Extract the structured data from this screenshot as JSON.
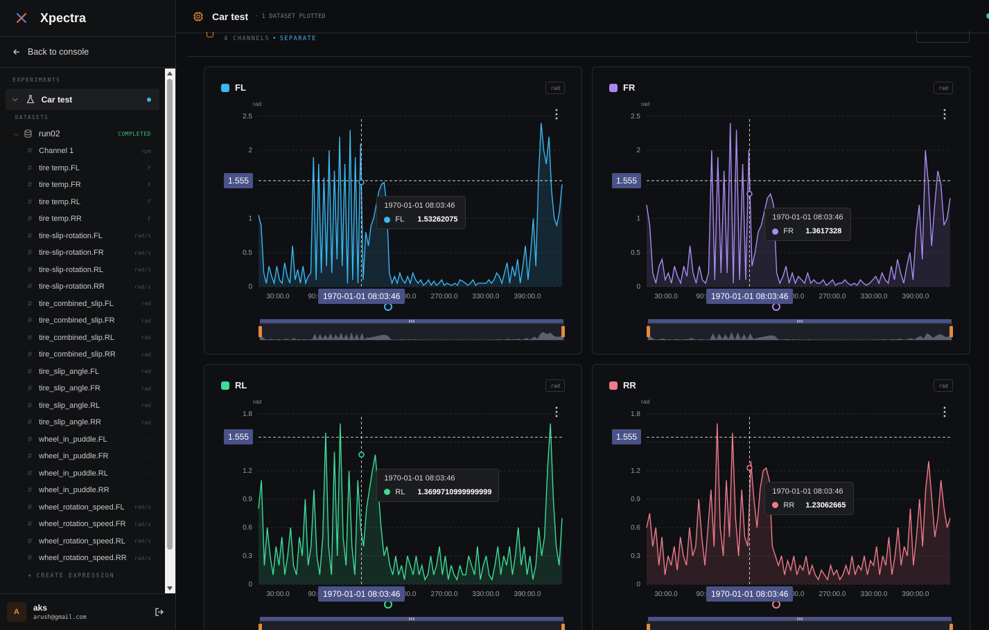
{
  "app": {
    "name": "Xpectra",
    "back_label": "Back to console"
  },
  "sidebar": {
    "experiments_label": "EXPERIMENTS",
    "experiment": {
      "name": "Car test"
    },
    "datasets_label": "DATASETS",
    "dataset": {
      "name": "run02",
      "status": "COMPLETED"
    },
    "channels": [
      {
        "name": "Channel 1",
        "unit": "rpm"
      },
      {
        "name": "tire temp.FL",
        "unit": "F"
      },
      {
        "name": "tire temp.FR",
        "unit": "F"
      },
      {
        "name": "tire temp.RL",
        "unit": "F"
      },
      {
        "name": "tire temp.RR",
        "unit": "F"
      },
      {
        "name": "tire-slip-rotation.FL",
        "unit": "rad/s"
      },
      {
        "name": "tire-slip-rotation.FR",
        "unit": "rad/s"
      },
      {
        "name": "tire-slip-rotation.RL",
        "unit": "rad/s"
      },
      {
        "name": "tire-slip-rotation.RR",
        "unit": "rad/s"
      },
      {
        "name": "tire_combined_slip.FL",
        "unit": "rad"
      },
      {
        "name": "tire_combined_slip.FR",
        "unit": "rad"
      },
      {
        "name": "tire_combined_slip.RL",
        "unit": "rad"
      },
      {
        "name": "tire_combined_slip.RR",
        "unit": "rad"
      },
      {
        "name": "tire_slip_angle.FL",
        "unit": "rad"
      },
      {
        "name": "tire_slip_angle.FR",
        "unit": "rad"
      },
      {
        "name": "tire_slip_angle.RL",
        "unit": "rad"
      },
      {
        "name": "tire_slip_angle.RR",
        "unit": "rad"
      },
      {
        "name": "wheel_in_puddle.FL",
        "unit": "-"
      },
      {
        "name": "wheel_in_puddle.FR",
        "unit": "-"
      },
      {
        "name": "wheel_in_puddle.RL",
        "unit": "-"
      },
      {
        "name": "wheel_in_puddle.RR",
        "unit": "-"
      },
      {
        "name": "wheel_rotation_speed.FL",
        "unit": "rad/s"
      },
      {
        "name": "wheel_rotation_speed.FR",
        "unit": "rad/s"
      },
      {
        "name": "wheel_rotation_speed.RL",
        "unit": "rad/s"
      },
      {
        "name": "wheel_rotation_speed.RR",
        "unit": "rad/s"
      }
    ],
    "create_label": "CREATE EXPRESSION"
  },
  "user": {
    "initial": "A",
    "name": "aks",
    "email": "arush@gmail.com"
  },
  "topbar": {
    "title": "Car test",
    "datasets_plotted": "1",
    "datasets_plotted_label": "DATASET PLOTTED"
  },
  "subheader": {
    "channel_count": "4 CHANNELS",
    "mode": "SEPARATE"
  },
  "cursor": {
    "y_value": "1.555",
    "time_label": "1970-01-01 08:03:46"
  },
  "chart_data": [
    {
      "type": "area",
      "name": "FL",
      "color": "#3ab7f0",
      "unit": "rad",
      "ylim": [
        0,
        2.5
      ],
      "yticks": [
        "0",
        "0.5",
        "1",
        "1.5",
        "2",
        "2.5"
      ],
      "xticks": [
        "30:00.0",
        "90:00.0",
        "150:00.0",
        "210:00.0",
        "270:00.0",
        "330:00.0",
        "390:00.0"
      ],
      "hover_value": "1.53262075",
      "hover_frac": 0.34,
      "values": [
        1.05,
        0.9,
        0.2,
        0.05,
        0.3,
        0.15,
        0.05,
        0.3,
        0.1,
        0.05,
        0.35,
        0.15,
        0.05,
        0.6,
        0.1,
        0.25,
        0.05,
        0.3,
        0.05,
        0.15,
        0.2,
        1.9,
        0.1,
        1.8,
        0.2,
        1.6,
        0.3,
        2.0,
        0.2,
        1.7,
        0.4,
        2.2,
        0.3,
        1.8,
        0.05,
        2.3,
        0.1,
        1.9,
        0.05,
        2.1,
        0.1,
        0.8,
        0.6,
        0.9,
        1.0,
        1.2,
        1.4,
        1.5,
        1.53,
        1.2,
        0.2,
        0.05,
        0.15,
        0.05,
        0.2,
        0.1,
        0.05,
        0.15,
        0.05,
        0.2,
        0.1,
        0.05,
        0.1,
        0.02,
        0.05,
        0.1,
        0.02,
        0.08,
        0.02,
        0.05,
        0.1,
        0.02,
        0.05,
        0.03,
        0.02,
        0.05,
        0.02,
        0.1,
        0.08,
        0.05,
        0.02,
        0.05,
        0.1,
        0.02,
        0.05,
        0.05,
        0.05,
        0.05,
        0.1,
        0.05,
        0.1,
        0.2,
        0.15,
        0.05,
        0.2,
        0.35,
        0.05,
        0.3,
        0.15,
        0.4,
        0.05,
        0.3,
        0.6,
        0.1,
        0.5,
        1.0,
        0.3,
        1.6,
        2.4,
        2.0,
        1.8,
        2.2,
        1.4,
        1.0,
        0.9,
        1.1,
        1.5
      ]
    },
    {
      "type": "area",
      "name": "FR",
      "color": "#a98bf0",
      "unit": "rad",
      "ylim": [
        0,
        2.5
      ],
      "yticks": [
        "0",
        "0.5",
        "1",
        "1.5",
        "2",
        "2.5"
      ],
      "xticks": [
        "30:00.0",
        "90:00.0",
        "150:00.0",
        "210:00.0",
        "270:00.0",
        "330:00.0",
        "390:00.0"
      ],
      "hover_value": "1.3617328",
      "hover_frac": 0.34,
      "values": [
        1.2,
        0.9,
        0.2,
        0.05,
        0.3,
        0.4,
        0.1,
        0.2,
        0.05,
        0.3,
        0.15,
        0.05,
        0.3,
        0.15,
        0.6,
        0.2,
        0.05,
        0.3,
        0.1,
        0.05,
        0.2,
        2.0,
        0.1,
        1.9,
        0.2,
        1.7,
        0.2,
        2.4,
        0.05,
        2.3,
        0.1,
        1.8,
        0.1,
        2.0,
        0.3,
        0.5,
        0.8,
        0.9,
        1.1,
        1.3,
        1.36,
        1.2,
        0.2,
        0.05,
        0.15,
        0.3,
        0.05,
        0.2,
        0.05,
        0.15,
        0.1,
        0.05,
        0.2,
        0.05,
        0.1,
        0.05,
        0.05,
        0.1,
        0.02,
        0.05,
        0.1,
        0.02,
        0.05,
        0.05,
        0.1,
        0.05,
        0.02,
        0.05,
        0.02,
        0.1,
        0.05,
        0.02,
        0.05,
        0.1,
        0.15,
        0.05,
        0.2,
        0.1,
        0.05,
        0.3,
        0.1,
        0.4,
        0.2,
        0.05,
        0.3,
        0.5,
        0.1,
        0.8,
        1.2,
        0.4,
        2.0,
        1.5,
        0.6,
        1.2,
        1.7,
        1.5,
        0.9,
        1.0,
        1.3
      ]
    },
    {
      "type": "area",
      "name": "RL",
      "color": "#3ddc97",
      "unit": "rad",
      "ylim": [
        0,
        1.8
      ],
      "yticks": [
        "0",
        "0.3",
        "0.6",
        "0.9",
        "1.2",
        "1.5",
        "1.8"
      ],
      "xticks": [
        "30:00.0",
        "90:00.0",
        "150:00.0",
        "210:00.0",
        "270:00.0",
        "330:00.0",
        "390:00.0"
      ],
      "hover_value": "1.3699710999999999",
      "hover_frac": 0.34,
      "values": [
        0.8,
        1.1,
        0.2,
        0.6,
        0.3,
        0.1,
        0.4,
        0.2,
        0.5,
        0.1,
        0.3,
        0.6,
        0.2,
        0.1,
        0.5,
        0.3,
        0.9,
        0.2,
        0.4,
        1.0,
        0.3,
        0.1,
        0.5,
        1.6,
        0.4,
        0.1,
        1.4,
        0.3,
        1.7,
        0.5,
        0.2,
        1.2,
        0.4,
        0.1,
        1.1,
        0.6,
        0.4,
        0.8,
        1.0,
        1.2,
        1.37,
        1.0,
        0.6,
        0.3,
        0.4,
        0.2,
        0.1,
        0.3,
        0.1,
        0.2,
        0.05,
        0.3,
        0.2,
        0.1,
        0.3,
        0.1,
        0.2,
        0.05,
        0.1,
        0.3,
        0.1,
        0.2,
        0.4,
        0.1,
        0.3,
        0.05,
        0.2,
        0.1,
        0.05,
        0.2,
        0.1,
        0.1,
        0.3,
        0.2,
        0.1,
        0.4,
        0.05,
        0.2,
        0.3,
        0.1,
        0.05,
        0.2,
        0.4,
        0.1,
        0.3,
        0.2,
        0.4,
        0.1,
        0.3,
        0.6,
        0.2,
        0.4,
        0.1,
        0.3,
        0.05,
        0.2,
        0.6,
        0.3,
        0.5,
        1.2,
        1.7,
        0.9,
        0.4,
        0.2,
        0.7
      ]
    },
    {
      "type": "area",
      "name": "RR",
      "color": "#f07a8a",
      "unit": "rad",
      "ylim": [
        0,
        1.8
      ],
      "yticks": [
        "0",
        "0.3",
        "0.6",
        "0.9",
        "1.2",
        "1.5",
        "1.8"
      ],
      "xticks": [
        "30:00.0",
        "90:00.0",
        "150:00.0",
        "210:00.0",
        "270:00.0",
        "330:00.0",
        "390:00.0"
      ],
      "hover_value": "1.23062665",
      "hover_frac": 0.34,
      "values": [
        0.6,
        0.75,
        0.4,
        0.6,
        0.2,
        0.5,
        0.1,
        0.3,
        0.2,
        0.4,
        0.15,
        0.5,
        0.3,
        0.2,
        0.6,
        0.3,
        0.4,
        0.9,
        0.5,
        0.2,
        0.6,
        1.0,
        0.4,
        1.7,
        0.6,
        0.3,
        1.1,
        0.5,
        1.6,
        0.7,
        0.3,
        1.0,
        0.5,
        0.4,
        1.3,
        0.9,
        0.6,
        1.0,
        1.2,
        1.23,
        1.1,
        0.4,
        0.3,
        0.2,
        0.3,
        0.1,
        0.25,
        0.15,
        0.3,
        0.1,
        0.2,
        0.15,
        0.3,
        0.1,
        0.2,
        0.1,
        0.05,
        0.15,
        0.1,
        0.05,
        0.2,
        0.1,
        0.15,
        0.05,
        0.1,
        0.2,
        0.1,
        0.3,
        0.1,
        0.2,
        0.15,
        0.3,
        0.1,
        0.25,
        0.2,
        0.4,
        0.1,
        0.3,
        0.2,
        0.5,
        0.1,
        0.3,
        0.6,
        0.2,
        0.4,
        0.3,
        0.8,
        0.2,
        0.5,
        0.9,
        0.4,
        1.0,
        1.3,
        0.9,
        0.5,
        0.7,
        1.1,
        0.8,
        0.6,
        0.7
      ]
    }
  ]
}
